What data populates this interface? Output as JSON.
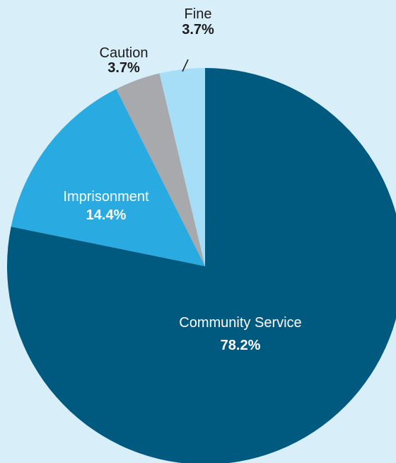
{
  "chart_data": {
    "type": "pie",
    "title": "",
    "start_angle_deg": 0,
    "direction": "clockwise",
    "slices": [
      {
        "label": "Community Service",
        "value_label": "78.2%",
        "value": 78.2,
        "color": "#005a7f",
        "label_color": "#ffffff",
        "value_color": "#ffffff"
      },
      {
        "label": "Imprisonment",
        "value_label": "14.4%",
        "value": 14.4,
        "color": "#29abe2",
        "label_color": "#ffffff",
        "value_color": "#ffffff"
      },
      {
        "label": "Caution",
        "value_label": "3.7%",
        "value": 3.7,
        "color": "#a7a9ac",
        "label_color": "#1a1a1a",
        "value_color": "#1a1a1a"
      },
      {
        "label": "Fine",
        "value_label": "3.7%",
        "value": 3.7,
        "color": "#a6def7",
        "label_color": "#1a1a1a",
        "value_color": "#1a1a1a"
      }
    ],
    "background_color": "#d8effa"
  }
}
